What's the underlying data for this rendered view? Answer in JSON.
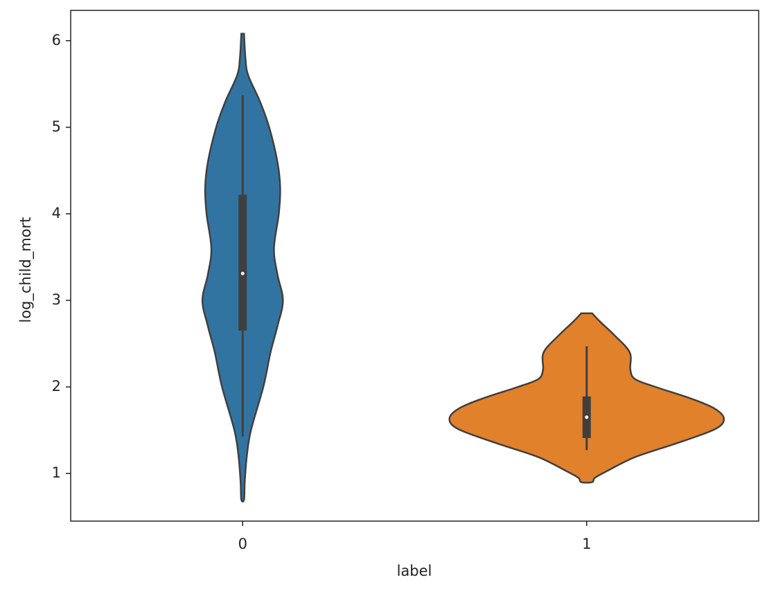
{
  "chart_data": {
    "type": "violin",
    "xlabel": "label",
    "ylabel": "log_child_mort",
    "categories": [
      "0",
      "1"
    ],
    "ylim": [
      0.45,
      6.35
    ],
    "yticks": [
      1,
      2,
      3,
      4,
      5,
      6
    ],
    "violins": [
      {
        "color": "#3274a1",
        "y": [
          6.08,
          5.8,
          5.6,
          5.3,
          5.0,
          4.6,
          4.3,
          4.0,
          3.6,
          3.3,
          3.0,
          2.7,
          2.4,
          2.0,
          1.5,
          1.2,
          0.9,
          0.7
        ],
        "width": [
          0.004,
          0.008,
          0.016,
          0.05,
          0.077,
          0.101,
          0.109,
          0.105,
          0.091,
          0.101,
          0.117,
          0.101,
          0.081,
          0.06,
          0.024,
          0.012,
          0.006,
          0.004
        ],
        "q1": 2.65,
        "median": 3.31,
        "q3": 4.22,
        "whisker_low": 1.43,
        "whisker_high": 5.37
      },
      {
        "color": "#e1812c",
        "y": [
          2.85,
          2.75,
          2.6,
          2.4,
          2.2,
          2.09,
          2.0,
          1.87,
          1.75,
          1.63,
          1.51,
          1.35,
          1.19,
          1.03,
          0.95,
          0.9
        ],
        "width": [
          0.016,
          0.04,
          0.08,
          0.125,
          0.127,
          0.141,
          0.2,
          0.3,
          0.372,
          0.399,
          0.372,
          0.262,
          0.141,
          0.06,
          0.024,
          0.016
        ],
        "q1": 1.41,
        "median": 1.65,
        "q3": 1.89,
        "whisker_low": 1.27,
        "whisker_high": 2.47
      }
    ]
  }
}
